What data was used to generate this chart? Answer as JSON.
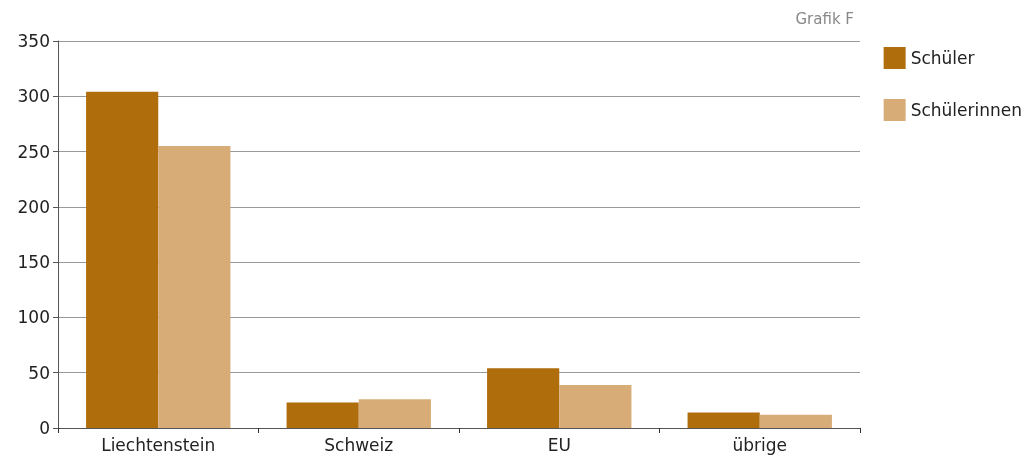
{
  "chart_data": {
    "type": "bar",
    "annotations": [
      "Grafik F"
    ],
    "categories": [
      "Liechtenstein",
      "Schweiz",
      "EU",
      "übrige"
    ],
    "series": [
      {
        "name": "Schüler",
        "color": "#b06d0c",
        "values": [
          304,
          23,
          54,
          14
        ]
      },
      {
        "name": "Schülerinnen",
        "color": "#d8ac77",
        "values": [
          255,
          26,
          39,
          12
        ]
      }
    ],
    "ylim": [
      0,
      350
    ],
    "yticks": [
      0,
      50,
      100,
      150,
      200,
      250,
      300,
      350
    ],
    "grid": "y",
    "legend": "right"
  }
}
